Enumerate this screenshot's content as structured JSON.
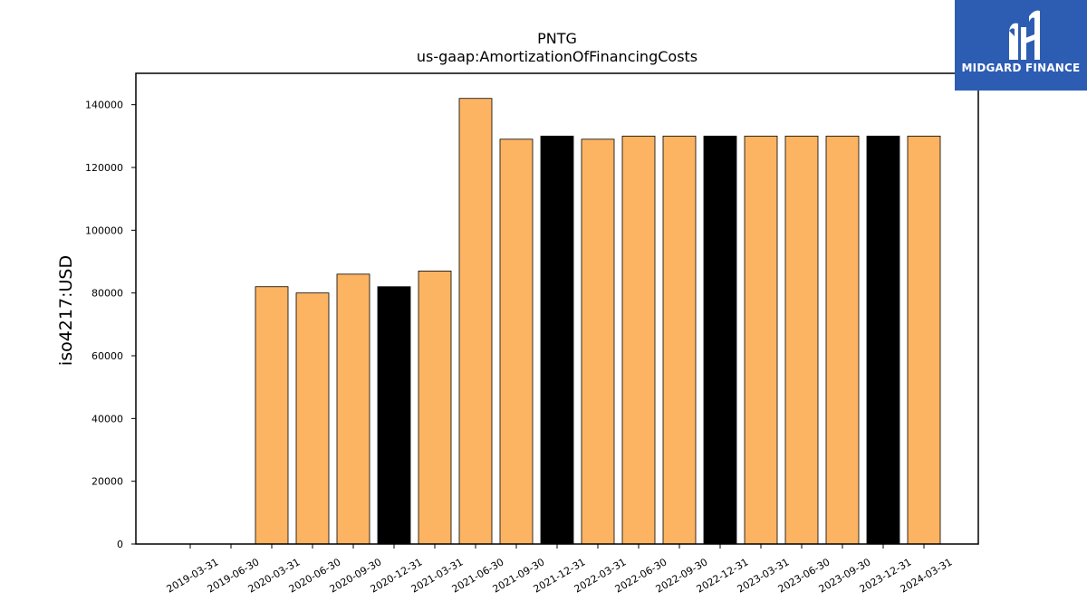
{
  "logo": {
    "text": "MIDGARD FINANCE"
  },
  "chart_data": {
    "type": "bar",
    "title": "PNTG",
    "subtitle": "us-gaap:AmortizationOfFinancingCosts",
    "xlabel": "",
    "ylabel": "iso4217:USD",
    "ylim": [
      0,
      150000
    ],
    "yticks": [
      0,
      20000,
      40000,
      60000,
      80000,
      100000,
      120000,
      140000
    ],
    "grid": false,
    "categories": [
      "2019-03-31",
      "2019-06-30",
      "2020-03-31",
      "2020-06-30",
      "2020-09-30",
      "2020-12-31",
      "2021-03-31",
      "2021-06-30",
      "2021-09-30",
      "2021-12-31",
      "2022-03-31",
      "2022-06-30",
      "2022-09-30",
      "2022-12-31",
      "2023-03-31",
      "2023-06-30",
      "2023-09-30",
      "2023-12-31",
      "2024-03-31"
    ],
    "values": [
      0,
      0,
      82000,
      80000,
      86000,
      82000,
      87000,
      142000,
      129000,
      130000,
      129000,
      130000,
      130000,
      130000,
      130000,
      130000,
      130000,
      130000,
      130000
    ],
    "bar_colors": [
      "#fdb462",
      "#fdb462",
      "#fdb462",
      "#fdb462",
      "#fdb462",
      "#000000",
      "#fdb462",
      "#fdb462",
      "#fdb462",
      "#000000",
      "#fdb462",
      "#fdb462",
      "#fdb462",
      "#000000",
      "#fdb462",
      "#fdb462",
      "#fdb462",
      "#000000",
      "#fdb462"
    ]
  }
}
